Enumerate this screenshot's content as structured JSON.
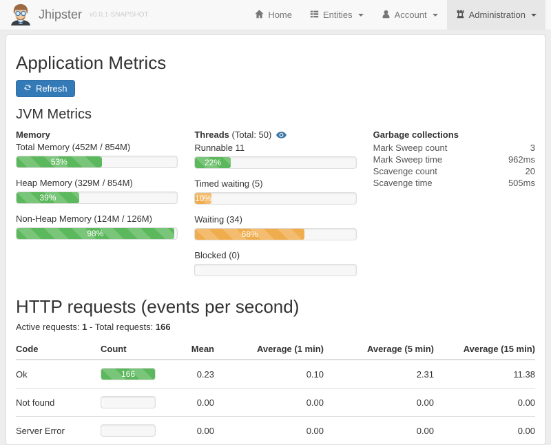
{
  "brand": {
    "name": "Jhipster",
    "version": "v0.0.1-SNAPSHOT"
  },
  "nav": [
    {
      "label": "Home",
      "icon": "home-icon"
    },
    {
      "label": "Entities",
      "icon": "list-icon"
    },
    {
      "label": "Account",
      "icon": "user-icon"
    },
    {
      "label": "Administration",
      "icon": "tower-icon"
    }
  ],
  "page": {
    "title": "Application Metrics",
    "refresh_label": "Refresh"
  },
  "jvm": {
    "section_title": "JVM Metrics",
    "memory": {
      "title": "Memory",
      "bars": [
        {
          "label": "Total Memory (452M / 854M)",
          "percent": 53,
          "value_text": "53%",
          "color": "green"
        },
        {
          "label": "Heap Memory (329M / 854M)",
          "percent": 39,
          "value_text": "39%",
          "color": "green"
        },
        {
          "label": "Non-Heap Memory (124M / 126M)",
          "percent": 98,
          "value_text": "98%",
          "color": "green"
        }
      ]
    },
    "threads": {
      "title": "Threads",
      "subtitle": "(Total: 50)",
      "bars": [
        {
          "label": "Runnable 11",
          "percent": 22,
          "value_text": "22%",
          "color": "green"
        },
        {
          "label": "Timed waiting (5)",
          "percent": 10,
          "value_text": "10%",
          "color": "orange"
        },
        {
          "label": "Waiting (34)",
          "percent": 68,
          "value_text": "68%",
          "color": "orange"
        },
        {
          "label": "Blocked (0)",
          "percent": 0,
          "value_text": "0%",
          "color": "green"
        }
      ]
    },
    "gc": {
      "title": "Garbage collections",
      "rows": [
        {
          "label": "Mark Sweep count",
          "value": "3"
        },
        {
          "label": "Mark Sweep time",
          "value": "962ms"
        },
        {
          "label": "Scavenge count",
          "value": "20"
        },
        {
          "label": "Scavenge time",
          "value": "505ms"
        }
      ]
    }
  },
  "http": {
    "title": "HTTP requests (events per second)",
    "active_label": "Active requests:",
    "active_value": "1",
    "separator": "-",
    "total_label": "Total requests:",
    "total_value": "166",
    "table": {
      "headers": [
        "Code",
        "Count",
        "Mean",
        "Average (1 min)",
        "Average (5 min)",
        "Average (15 min)"
      ],
      "rows": [
        {
          "code": "Ok",
          "count_label": "166",
          "count_percent": 100,
          "mean": "0.23",
          "avg1": "0.10",
          "avg5": "2.31",
          "avg15": "11.38"
        },
        {
          "code": "Not found",
          "count_label": "0",
          "count_percent": 0,
          "mean": "0.00",
          "avg1": "0.00",
          "avg5": "0.00",
          "avg15": "0.00"
        },
        {
          "code": "Server Error",
          "count_label": "0",
          "count_percent": 0,
          "mean": "0.00",
          "avg1": "0.00",
          "avg5": "0.00",
          "avg15": "0.00"
        }
      ]
    }
  },
  "colors": {
    "green": "#5cb85c",
    "orange": "#f0ad4e",
    "primary": "#337ab7",
    "navbar_bg": "#f8f8f8",
    "active_item_bg": "#e7e7e7"
  }
}
